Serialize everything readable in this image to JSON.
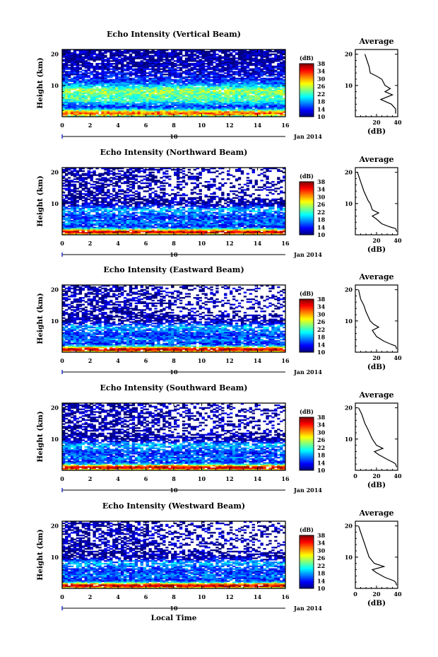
{
  "chart_data": [
    {
      "type": "heatmap",
      "title": "Echo Intensity (Vertical Beam)",
      "ylabel": "Height (km)",
      "x_ticks": [
        "0",
        "2",
        "4",
        "6",
        "8",
        "10",
        "12",
        "14",
        "16"
      ],
      "y_ticks": [
        "20",
        "10"
      ],
      "date_marker": "10",
      "date_label": "Jan 2014",
      "colorbar": {
        "unit": "(dB)",
        "ticks": [
          "38",
          "34",
          "30",
          "26",
          "22",
          "18",
          "14",
          "10"
        ],
        "range": [
          10,
          38
        ]
      },
      "profile": {
        "title": "Average",
        "xlabel": "(dB)",
        "x_ticks": [
          "20",
          "40"
        ],
        "y_ticks": [
          "20",
          "10"
        ],
        "xlim": [
          0,
          40
        ],
        "values": [
          [
            9,
            20
          ],
          [
            11,
            18
          ],
          [
            13,
            16
          ],
          [
            14,
            14
          ],
          [
            20,
            13
          ],
          [
            25,
            12
          ],
          [
            28,
            10
          ],
          [
            33,
            9
          ],
          [
            28,
            8
          ],
          [
            35,
            7
          ],
          [
            24,
            5.5
          ],
          [
            34,
            4
          ],
          [
            38,
            2.5
          ],
          [
            38,
            1
          ]
        ]
      },
      "profile_ylim": [
        0,
        20
      ],
      "time_range": [
        0,
        16
      ]
    },
    {
      "type": "heatmap",
      "title": "Echo Intensity (Northward Beam)",
      "ylabel": "Height (km)",
      "x_ticks": [
        "0",
        "2",
        "4",
        "6",
        "8",
        "10",
        "12",
        "14",
        "16"
      ],
      "y_ticks": [
        "20",
        "10"
      ],
      "date_marker": "10",
      "date_label": "Jan 2014",
      "colorbar": {
        "unit": "(dB)",
        "ticks": [
          "38",
          "34",
          "30",
          "26",
          "22",
          "18",
          "14",
          "10"
        ],
        "range": [
          10,
          38
        ]
      },
      "profile": {
        "title": "Average",
        "xlabel": "(dB)",
        "x_ticks": [
          "20",
          "40"
        ],
        "y_ticks": [
          "20",
          "10"
        ],
        "xlim": [
          0,
          40
        ],
        "values": [
          [
            2,
            20
          ],
          [
            4,
            18
          ],
          [
            6,
            16
          ],
          [
            8,
            14
          ],
          [
            12,
            11
          ],
          [
            14,
            10
          ],
          [
            16,
            8
          ],
          [
            22,
            7
          ],
          [
            16,
            6
          ],
          [
            20,
            5
          ],
          [
            25,
            3.5
          ],
          [
            33,
            2.5
          ],
          [
            38,
            2
          ],
          [
            39,
            1
          ]
        ]
      },
      "profile_ylim": [
        0,
        20
      ],
      "time_range": [
        0,
        16
      ]
    },
    {
      "type": "heatmap",
      "title": "Echo Intensity (Eastward Beam)",
      "ylabel": "Height (km)",
      "x_ticks": [
        "0",
        "2",
        "4",
        "6",
        "8",
        "10",
        "12",
        "14",
        "16"
      ],
      "y_ticks": [
        "20",
        "10"
      ],
      "date_marker": "10",
      "date_label": "Jan 2014",
      "colorbar": {
        "unit": "(dB)",
        "ticks": [
          "38",
          "34",
          "30",
          "26",
          "22",
          "18",
          "14",
          "10"
        ],
        "range": [
          10,
          38
        ]
      },
      "profile": {
        "title": "Average",
        "xlabel": "(dB)",
        "x_ticks": [
          "20",
          "40"
        ],
        "y_ticks": [
          "20",
          "10"
        ],
        "xlim": [
          0,
          40
        ],
        "values": [
          [
            3,
            20
          ],
          [
            5,
            17
          ],
          [
            8,
            15
          ],
          [
            10,
            13
          ],
          [
            14,
            10
          ],
          [
            17,
            9
          ],
          [
            22,
            8
          ],
          [
            16,
            7
          ],
          [
            20,
            5
          ],
          [
            27,
            3.5
          ],
          [
            34,
            2.5
          ],
          [
            38,
            2
          ],
          [
            39,
            1
          ]
        ]
      },
      "profile_ylim": [
        0,
        20
      ],
      "time_range": [
        0,
        16
      ]
    },
    {
      "type": "heatmap",
      "title": "Echo Intensity (Southward Beam)",
      "ylabel": "Height (km)",
      "x_ticks": [
        "0",
        "2",
        "4",
        "6",
        "8",
        "10",
        "12",
        "14",
        "16"
      ],
      "y_ticks": [
        "20",
        "10"
      ],
      "date_marker": "10",
      "date_label": "Jan 2014",
      "colorbar": {
        "unit": "(dB)",
        "ticks": [
          "38",
          "34",
          "30",
          "26",
          "22",
          "18",
          "14",
          "10"
        ],
        "range": [
          10,
          38
        ]
      },
      "profile": {
        "title": "Average",
        "xlabel": "(dB)",
        "x_ticks": [
          "0",
          "20",
          "40"
        ],
        "y_ticks": [
          "20",
          "10"
        ],
        "xlim": [
          0,
          40
        ],
        "values": [
          [
            3,
            20
          ],
          [
            6,
            18
          ],
          [
            9,
            15
          ],
          [
            12,
            13
          ],
          [
            16,
            10
          ],
          [
            20,
            8
          ],
          [
            26,
            7
          ],
          [
            18,
            6
          ],
          [
            22,
            5
          ],
          [
            30,
            3.5
          ],
          [
            36,
            2.5
          ],
          [
            38,
            2
          ],
          [
            39,
            1
          ]
        ]
      },
      "profile_ylim": [
        0,
        20
      ],
      "time_range": [
        0,
        16
      ]
    },
    {
      "type": "heatmap",
      "title": "Echo Intensity (Westward Beam)",
      "ylabel": "Height (km)",
      "x_ticks": [
        "0",
        "2",
        "4",
        "6",
        "8",
        "10",
        "12",
        "14",
        "16"
      ],
      "y_ticks": [
        "20",
        "10"
      ],
      "date_marker": "10",
      "date_label": "Jan 2014",
      "xlabel": "Local Time",
      "colorbar": {
        "unit": "(dB)",
        "ticks": [
          "38",
          "34",
          "30",
          "26",
          "22",
          "18",
          "14",
          "10"
        ],
        "range": [
          10,
          38
        ]
      },
      "profile": {
        "title": "Average",
        "xlabel": "(dB)",
        "x_ticks": [
          "0",
          "20",
          "40"
        ],
        "y_ticks": [
          "20",
          "10"
        ],
        "xlim": [
          0,
          40
        ],
        "values": [
          [
            3,
            20
          ],
          [
            5,
            18
          ],
          [
            7,
            16
          ],
          [
            9,
            14
          ],
          [
            11,
            12
          ],
          [
            13,
            10
          ],
          [
            18,
            8
          ],
          [
            27,
            7
          ],
          [
            16,
            6
          ],
          [
            20,
            5
          ],
          [
            28,
            3.5
          ],
          [
            36,
            2.5
          ],
          [
            38,
            2
          ],
          [
            39,
            1
          ]
        ]
      },
      "profile_ylim": [
        0,
        20
      ],
      "time_range": [
        0,
        16
      ]
    }
  ]
}
